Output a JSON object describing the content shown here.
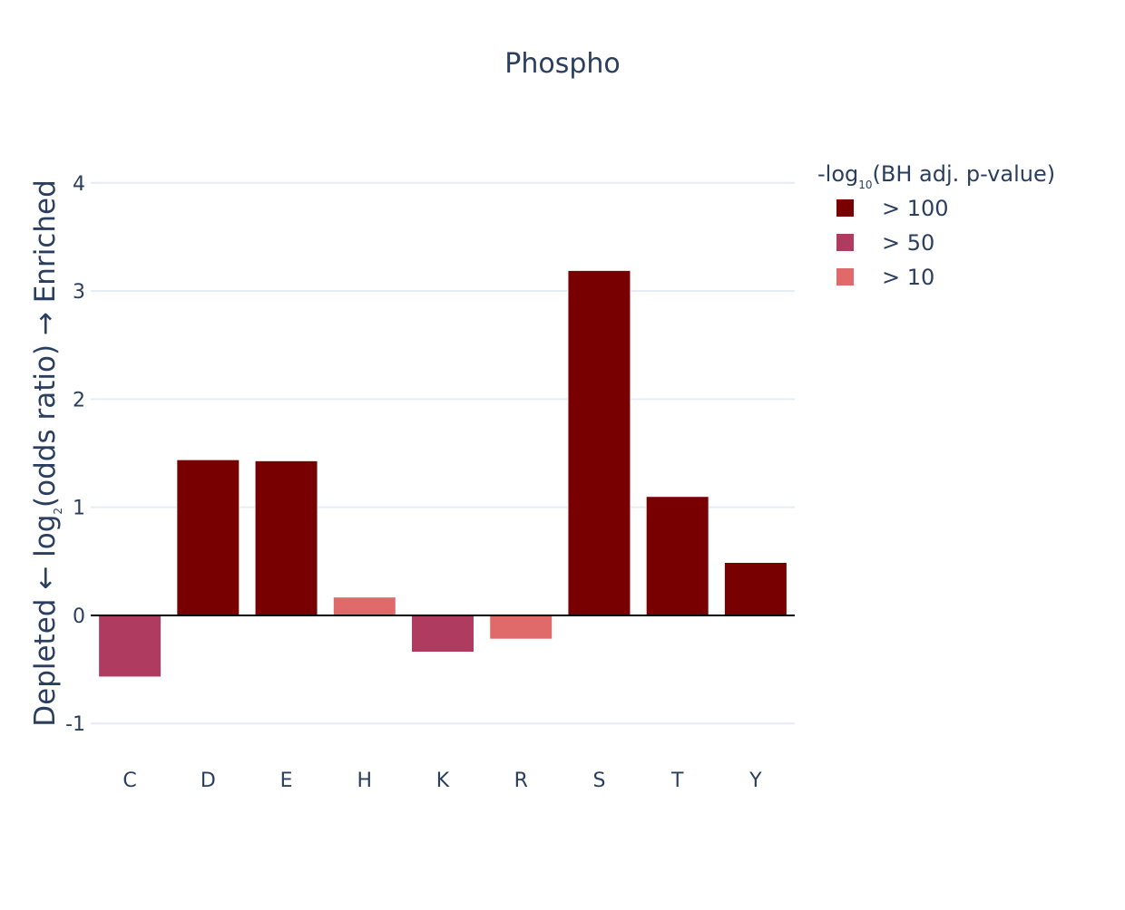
{
  "chart_data": {
    "type": "bar",
    "title": "Phospho",
    "xlabel": "",
    "ylabel": {
      "pre": "Depleted ← log",
      "sub": "2",
      "post": "(odds ratio) → Enriched"
    },
    "ylim": [
      -1.35,
      4.35
    ],
    "yticks": [
      -1,
      0,
      1,
      2,
      3,
      4
    ],
    "ytick_labels": [
      "-1",
      "0",
      "1",
      "2",
      "3",
      "4"
    ],
    "grid": true,
    "categories": [
      "C",
      "D",
      "E",
      "H",
      "K",
      "R",
      "S",
      "T",
      "Y"
    ],
    "values": [
      -0.57,
      1.44,
      1.43,
      0.17,
      -0.34,
      -0.22,
      3.19,
      1.1,
      0.49
    ],
    "significance": [
      "> 50",
      "> 100",
      "> 100",
      "> 10",
      "> 50",
      "> 10",
      "> 100",
      "> 100",
      "> 100"
    ],
    "legend": {
      "title": {
        "pre": "-log",
        "sub": "10",
        "post": "(BH adj. p-value)"
      },
      "placement": "top-right",
      "entries": [
        {
          "label": "> 100",
          "color": "#780000"
        },
        {
          "label": "> 50",
          "color": "#b03b60"
        },
        {
          "label": "> 10",
          "color": "#e06a6a"
        }
      ]
    }
  }
}
